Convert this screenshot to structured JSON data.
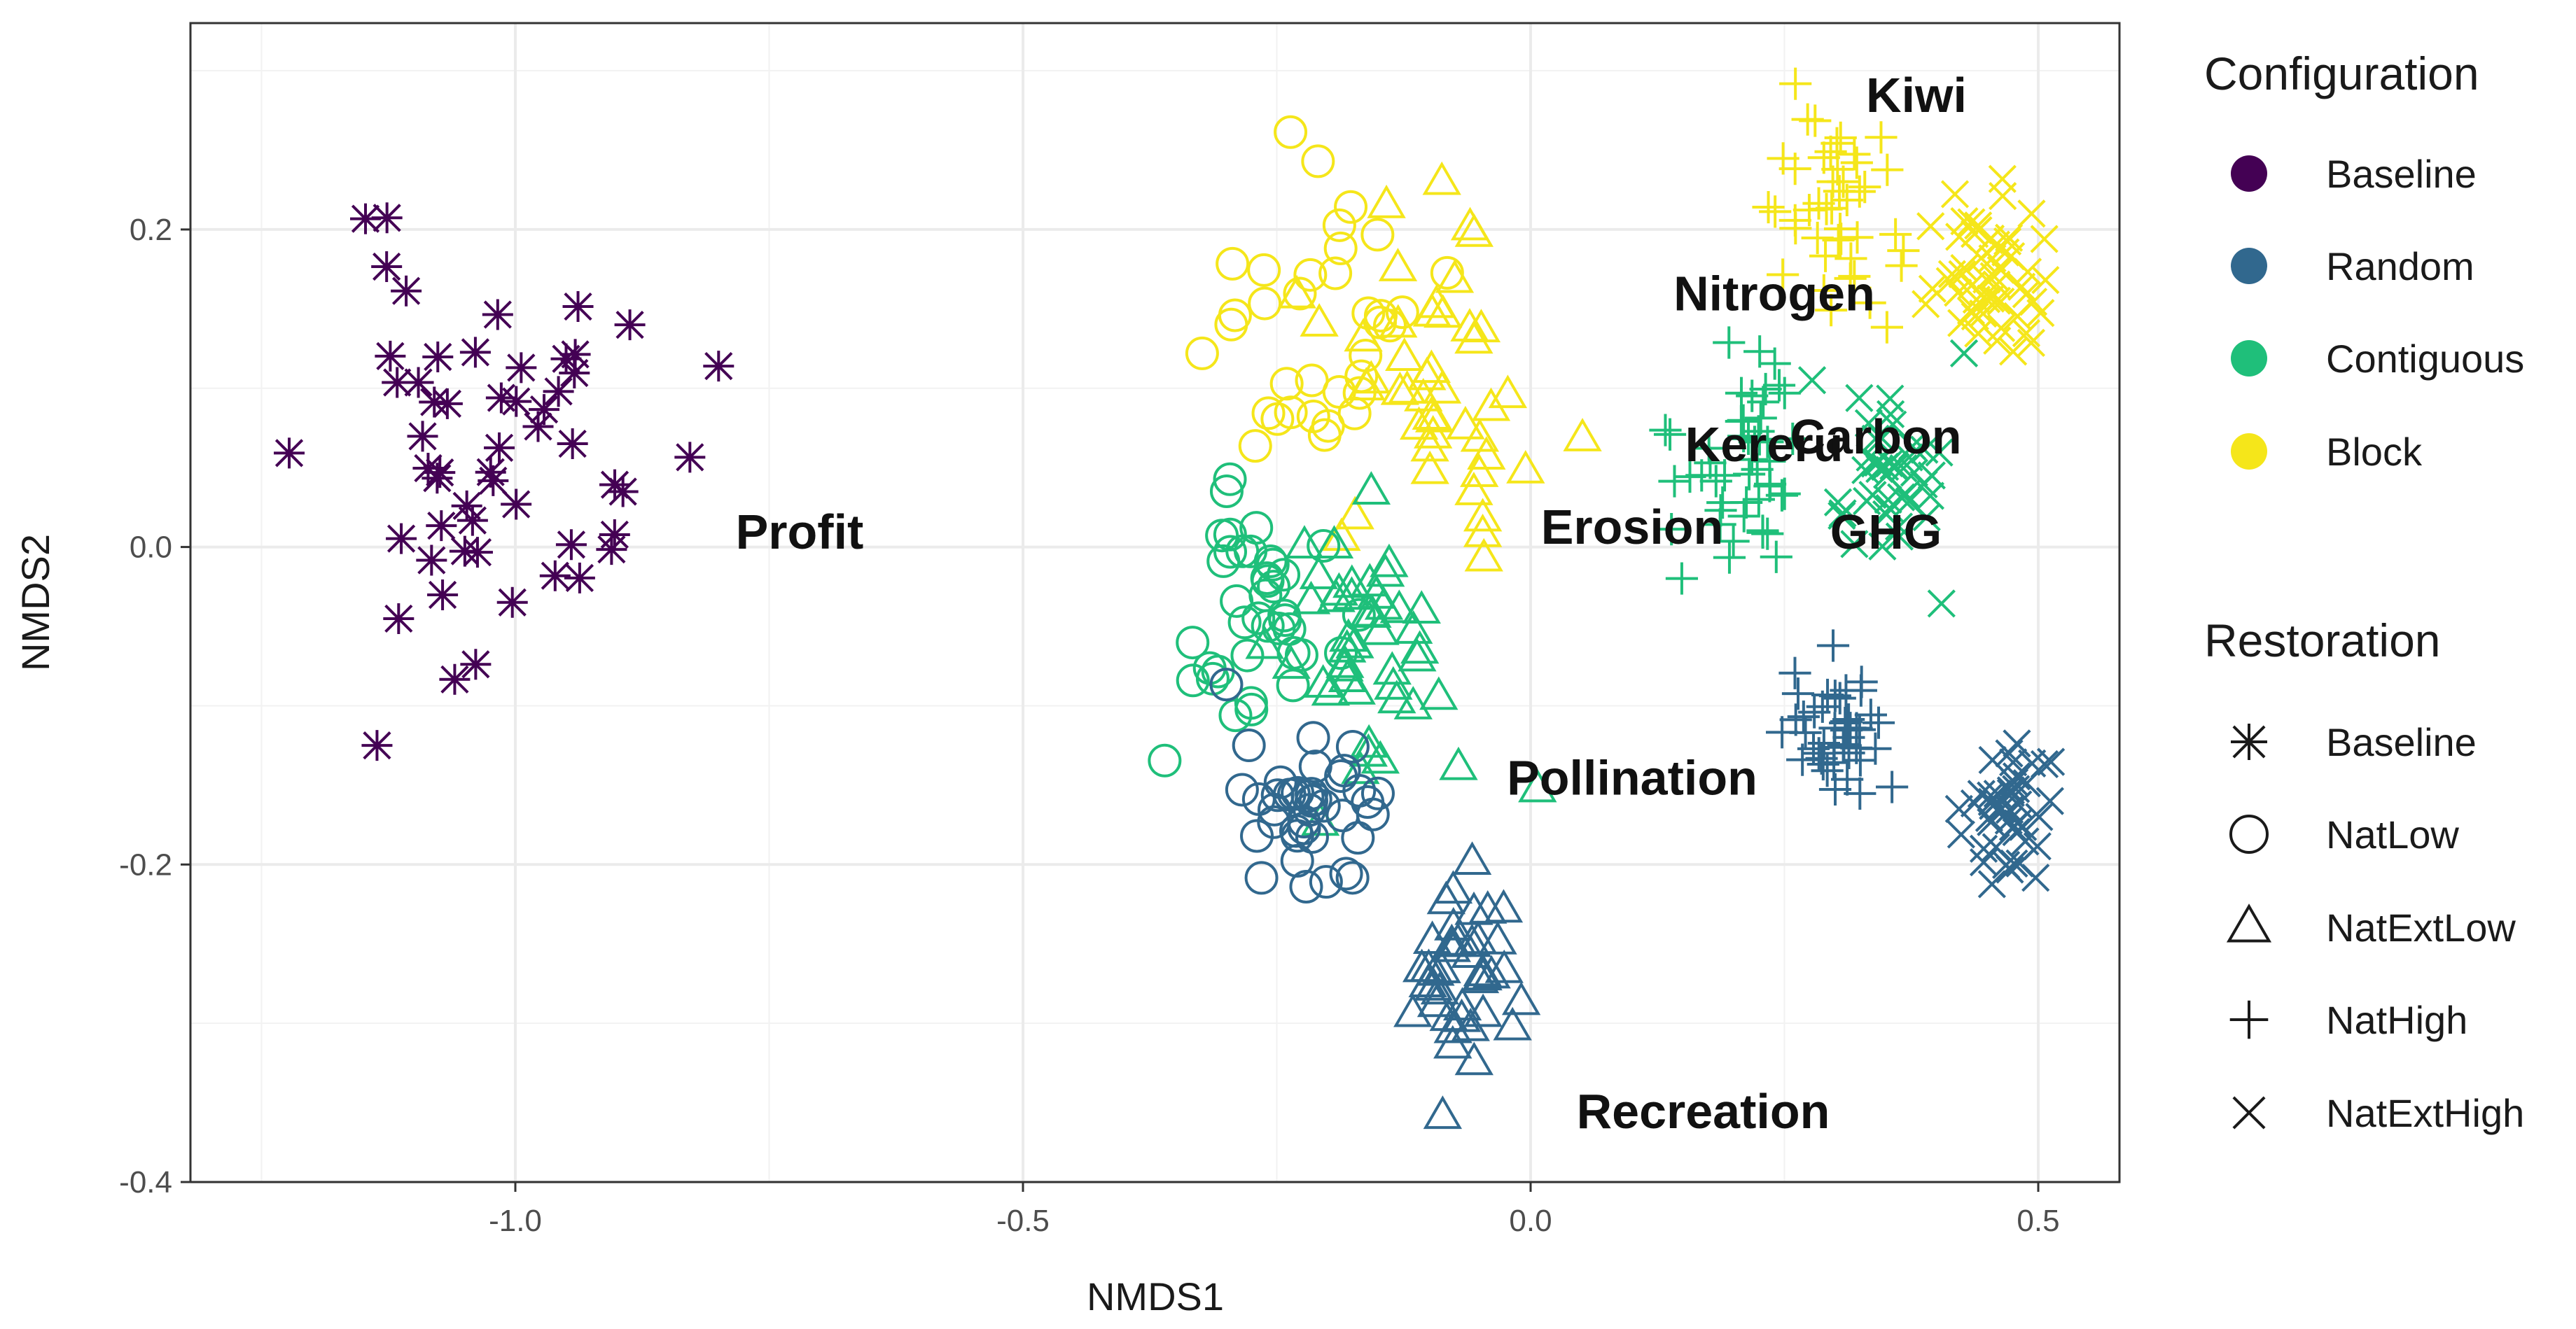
{
  "chart_data": {
    "type": "scatter",
    "xlabel": "NMDS1",
    "ylabel": "NMDS2",
    "xlim": [
      -1.32,
      0.58
    ],
    "ylim": [
      -0.4,
      0.33
    ],
    "x_ticks": [
      -1.0,
      -0.5,
      0.0,
      0.5
    ],
    "x_tick_labels": [
      "-1.0",
      "-0.5",
      "0.0",
      "0.5"
    ],
    "y_ticks": [
      -0.4,
      -0.2,
      0.0,
      0.2
    ],
    "y_tick_labels": [
      "-0.4",
      "-0.2",
      "0.0",
      "0.2"
    ],
    "grid": true,
    "legend_position": "right",
    "colors": {
      "Baseline": "#440154",
      "Random": "#31688e",
      "Contiguous": "#1fbf7a",
      "Block": "#f5e61a"
    },
    "legends": [
      {
        "title": "Configuration",
        "kind": "color",
        "items": [
          {
            "label": "Baseline",
            "color": "#440154"
          },
          {
            "label": "Random",
            "color": "#31688e"
          },
          {
            "label": "Contiguous",
            "color": "#1fbf7a"
          },
          {
            "label": "Block",
            "color": "#f5e61a"
          }
        ]
      },
      {
        "title": "Restoration",
        "kind": "shape",
        "items": [
          {
            "label": "Baseline",
            "shape": "asterisk"
          },
          {
            "label": "NatLow",
            "shape": "circle"
          },
          {
            "label": "NatExtLow",
            "shape": "triangle"
          },
          {
            "label": "NatHigh",
            "shape": "plus"
          },
          {
            "label": "NatExtHigh",
            "shape": "cross"
          }
        ]
      }
    ],
    "clusters": [
      {
        "configuration": "Baseline",
        "restoration": "Baseline",
        "center": [
          -1.01,
          0.06
        ],
        "spread": [
          0.09,
          0.065
        ],
        "n": 55,
        "seed": 11
      },
      {
        "configuration": "Block",
        "restoration": "NatLow",
        "center": [
          -0.21,
          0.14
        ],
        "spread": [
          0.05,
          0.065
        ],
        "n": 35,
        "seed": 21
      },
      {
        "configuration": "Block",
        "restoration": "NatExtLow",
        "center": [
          -0.09,
          0.12
        ],
        "spread": [
          0.045,
          0.055
        ],
        "n": 45,
        "seed": 22
      },
      {
        "configuration": "Block",
        "restoration": "NatHigh",
        "center": [
          0.29,
          0.21
        ],
        "spread": [
          0.035,
          0.04
        ],
        "n": 45,
        "seed": 23
      },
      {
        "configuration": "Block",
        "restoration": "NatExtHigh",
        "center": [
          0.45,
          0.17
        ],
        "spread": [
          0.03,
          0.03
        ],
        "n": 55,
        "seed": 24
      },
      {
        "configuration": "Contiguous",
        "restoration": "NatLow",
        "center": [
          -0.27,
          -0.04
        ],
        "spread": [
          0.035,
          0.04
        ],
        "n": 40,
        "seed": 31
      },
      {
        "configuration": "Contiguous",
        "restoration": "NatExtLow",
        "center": [
          -0.16,
          -0.06
        ],
        "spread": [
          0.045,
          0.04
        ],
        "n": 45,
        "seed": 32
      },
      {
        "configuration": "Contiguous",
        "restoration": "NatHigh",
        "center": [
          0.21,
          0.05
        ],
        "spread": [
          0.035,
          0.03
        ],
        "n": 50,
        "seed": 33
      },
      {
        "configuration": "Contiguous",
        "restoration": "NatExtHigh",
        "center": [
          0.35,
          0.05
        ],
        "spread": [
          0.03,
          0.03
        ],
        "n": 45,
        "seed": 34
      },
      {
        "configuration": "Random",
        "restoration": "NatLow",
        "center": [
          -0.21,
          -0.17
        ],
        "spread": [
          0.035,
          0.03
        ],
        "n": 40,
        "seed": 41
      },
      {
        "configuration": "Random",
        "restoration": "NatExtLow",
        "center": [
          -0.07,
          -0.26
        ],
        "spread": [
          0.025,
          0.03
        ],
        "n": 40,
        "seed": 42
      },
      {
        "configuration": "Random",
        "restoration": "NatHigh",
        "center": [
          0.3,
          -0.12
        ],
        "spread": [
          0.025,
          0.025
        ],
        "n": 45,
        "seed": 43
      },
      {
        "configuration": "Random",
        "restoration": "NatExtHigh",
        "center": [
          0.47,
          -0.17
        ],
        "spread": [
          0.025,
          0.025
        ],
        "n": 45,
        "seed": 44
      }
    ],
    "annotations": [
      {
        "text": "Kiwi",
        "x": 0.38,
        "y": 0.285
      },
      {
        "text": "Nitrogen",
        "x": 0.24,
        "y": 0.16
      },
      {
        "text": "Carbon",
        "x": 0.34,
        "y": 0.07
      },
      {
        "text": "Kereru",
        "x": 0.23,
        "y": 0.065
      },
      {
        "text": "GHG",
        "x": 0.35,
        "y": 0.01
      },
      {
        "text": "Erosion",
        "x": 0.1,
        "y": 0.013
      },
      {
        "text": "Profit",
        "x": -0.72,
        "y": 0.01
      },
      {
        "text": "Pollination",
        "x": 0.1,
        "y": -0.145
      },
      {
        "text": "Recreation",
        "x": 0.17,
        "y": -0.355
      }
    ]
  }
}
